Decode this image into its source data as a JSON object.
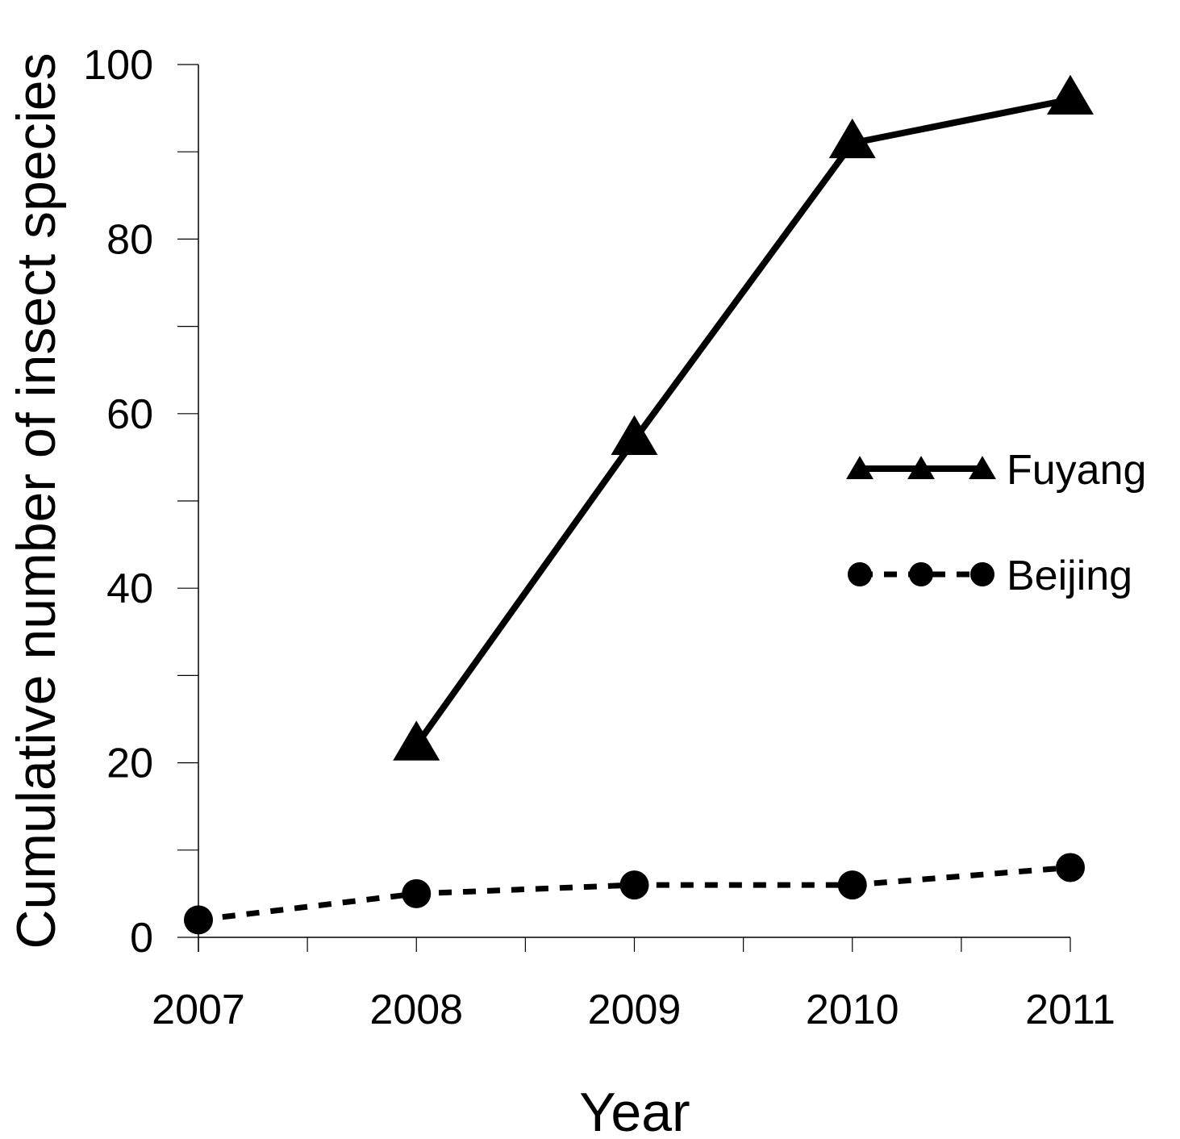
{
  "chart_data": {
    "type": "line",
    "title": "",
    "xlabel": "Year",
    "ylabel": "Cumulative number of insect species",
    "x": [
      2007,
      2008,
      2009,
      2010,
      2011
    ],
    "x_tick_labels": [
      "2007",
      "2008",
      "2009",
      "2010",
      "2011"
    ],
    "ylim": [
      0,
      100
    ],
    "y_major_ticks": [
      0,
      20,
      40,
      60,
      80,
      100
    ],
    "y_tick_labels": [
      "0",
      "20",
      "40",
      "60",
      "80",
      "100"
    ],
    "y_minor_step": 10,
    "grid": false,
    "legend_position": "right",
    "series": [
      {
        "name": "Fuyang",
        "marker": "triangle",
        "line_style": "solid",
        "color": "#000000",
        "values": [
          null,
          22,
          57,
          91,
          96
        ]
      },
      {
        "name": "Beijing",
        "marker": "circle",
        "line_style": "dashed",
        "color": "#000000",
        "values": [
          2,
          5,
          6,
          6,
          8
        ]
      }
    ]
  }
}
